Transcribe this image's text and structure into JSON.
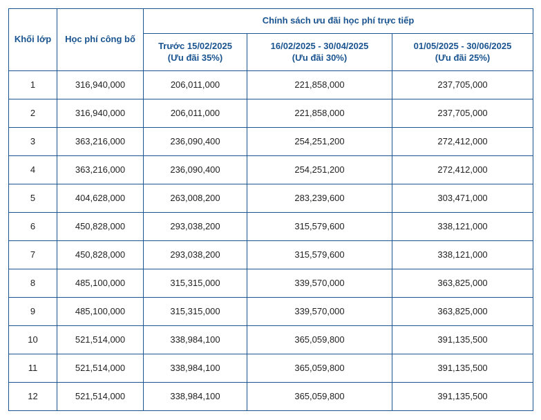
{
  "colors": {
    "border": "#1a5490",
    "header_text": "#1a5490",
    "body_text": "#222222",
    "background": "#ffffff"
  },
  "header": {
    "grade": "Khối lớp",
    "published": "Học phí công bố",
    "policy_top": "Chính sách ưu đãi học phí trực tiếp",
    "period1_line1": "Trước 15/02/2025",
    "period1_line2": "(Ưu đãi 35%)",
    "period2_line1": "16/02/2025 - 30/04/2025",
    "period2_line2": "(Ưu đãi 30%)",
    "period3_line1": "01/05/2025 - 30/06/2025",
    "period3_line2": "(Ưu đãi 25%)"
  },
  "rows": [
    {
      "grade": "1",
      "published": "316,940,000",
      "p1": "206,011,000",
      "p2": "221,858,000",
      "p3": "237,705,000"
    },
    {
      "grade": "2",
      "published": "316,940,000",
      "p1": "206,011,000",
      "p2": "221,858,000",
      "p3": "237,705,000"
    },
    {
      "grade": "3",
      "published": "363,216,000",
      "p1": "236,090,400",
      "p2": "254,251,200",
      "p3": "272,412,000"
    },
    {
      "grade": "4",
      "published": "363,216,000",
      "p1": "236,090,400",
      "p2": "254,251,200",
      "p3": "272,412,000"
    },
    {
      "grade": "5",
      "published": "404,628,000",
      "p1": "263,008,200",
      "p2": "283,239,600",
      "p3": "303,471,000"
    },
    {
      "grade": "6",
      "published": "450,828,000",
      "p1": "293,038,200",
      "p2": "315,579,600",
      "p3": "338,121,000"
    },
    {
      "grade": "7",
      "published": "450,828,000",
      "p1": "293,038,200",
      "p2": "315,579,600",
      "p3": "338,121,000"
    },
    {
      "grade": "8",
      "published": "485,100,000",
      "p1": "315,315,000",
      "p2": "339,570,000",
      "p3": "363,825,000"
    },
    {
      "grade": "9",
      "published": "485,100,000",
      "p1": "315,315,000",
      "p2": "339,570,000",
      "p3": "363,825,000"
    },
    {
      "grade": "10",
      "published": "521,514,000",
      "p1": "338,984,100",
      "p2": "365,059,800",
      "p3": "391,135,500"
    },
    {
      "grade": "11",
      "published": "521,514,000",
      "p1": "338,984,100",
      "p2": "365,059,800",
      "p3": "391,135,500"
    },
    {
      "grade": "12",
      "published": "521,514,000",
      "p1": "338,984,100",
      "p2": "365,059,800",
      "p3": "391,135,500"
    }
  ]
}
